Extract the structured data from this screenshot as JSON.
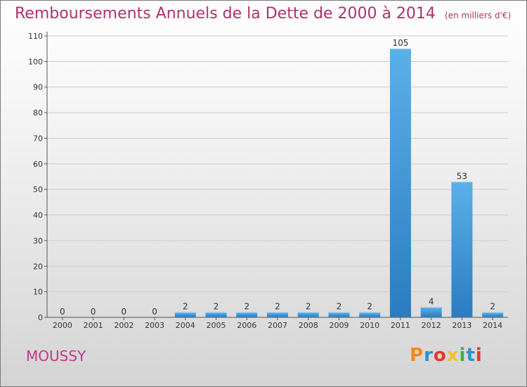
{
  "header": {
    "title": "Remboursements Annuels de la Dette de 2000 à 2014",
    "unit": "(en milliers d'€)"
  },
  "footer": {
    "city": "MOUSSY",
    "brand": "Proxiti",
    "brand_colors": [
      "#f08a1c",
      "#2c8fd6",
      "#e8362b",
      "#f2c12e",
      "#4aa84a",
      "#2c8fd6",
      "#e8362b"
    ]
  },
  "colors": {
    "title": "#b0306a",
    "bar_light": "#5ab0ea",
    "bar_dark": "#2a7cc0",
    "axis": "#555555",
    "grid": "#cccccc"
  },
  "chart_data": {
    "type": "bar",
    "title": "Remboursements Annuels de la Dette de 2000 à 2014",
    "xlabel": "",
    "ylabel": "",
    "categories": [
      "2000",
      "2001",
      "2002",
      "2003",
      "2004",
      "2005",
      "2006",
      "2007",
      "2008",
      "2009",
      "2010",
      "2011",
      "2012",
      "2013",
      "2014"
    ],
    "values": [
      0,
      0,
      0,
      0,
      2,
      2,
      2,
      2,
      2,
      2,
      2,
      105,
      4,
      53,
      2
    ],
    "ylim": [
      0,
      110
    ],
    "yticks": [
      0,
      10,
      20,
      30,
      40,
      50,
      60,
      70,
      80,
      90,
      100,
      110
    ],
    "grid": true
  }
}
